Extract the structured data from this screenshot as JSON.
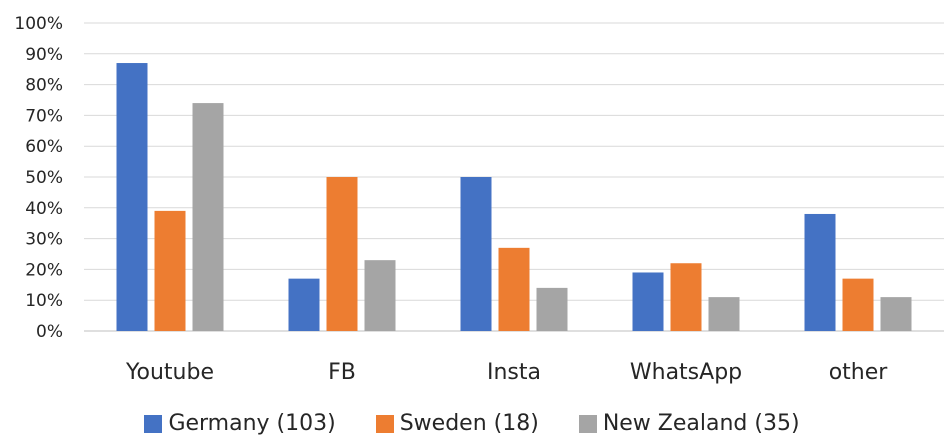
{
  "chart_data": {
    "type": "bar",
    "categories": [
      "Youtube",
      "FB",
      "Insta",
      "WhatsApp",
      "other"
    ],
    "series": [
      {
        "name": "Germany (103)",
        "color": "#4472C4",
        "values": [
          87,
          17,
          50,
          19,
          38
        ]
      },
      {
        "name": "Sweden (18)",
        "color": "#ED7D31",
        "values": [
          39,
          50,
          27,
          22,
          17
        ]
      },
      {
        "name": "New Zealand (35)",
        "color": "#A5A5A5",
        "values": [
          74,
          23,
          14,
          11,
          11
        ]
      }
    ],
    "yticks": [
      "0%",
      "10%",
      "20%",
      "30%",
      "40%",
      "50%",
      "60%",
      "70%",
      "80%",
      "90%",
      "100%"
    ],
    "ylim": [
      0,
      100
    ],
    "grid": true,
    "legend_position": "bottom"
  }
}
